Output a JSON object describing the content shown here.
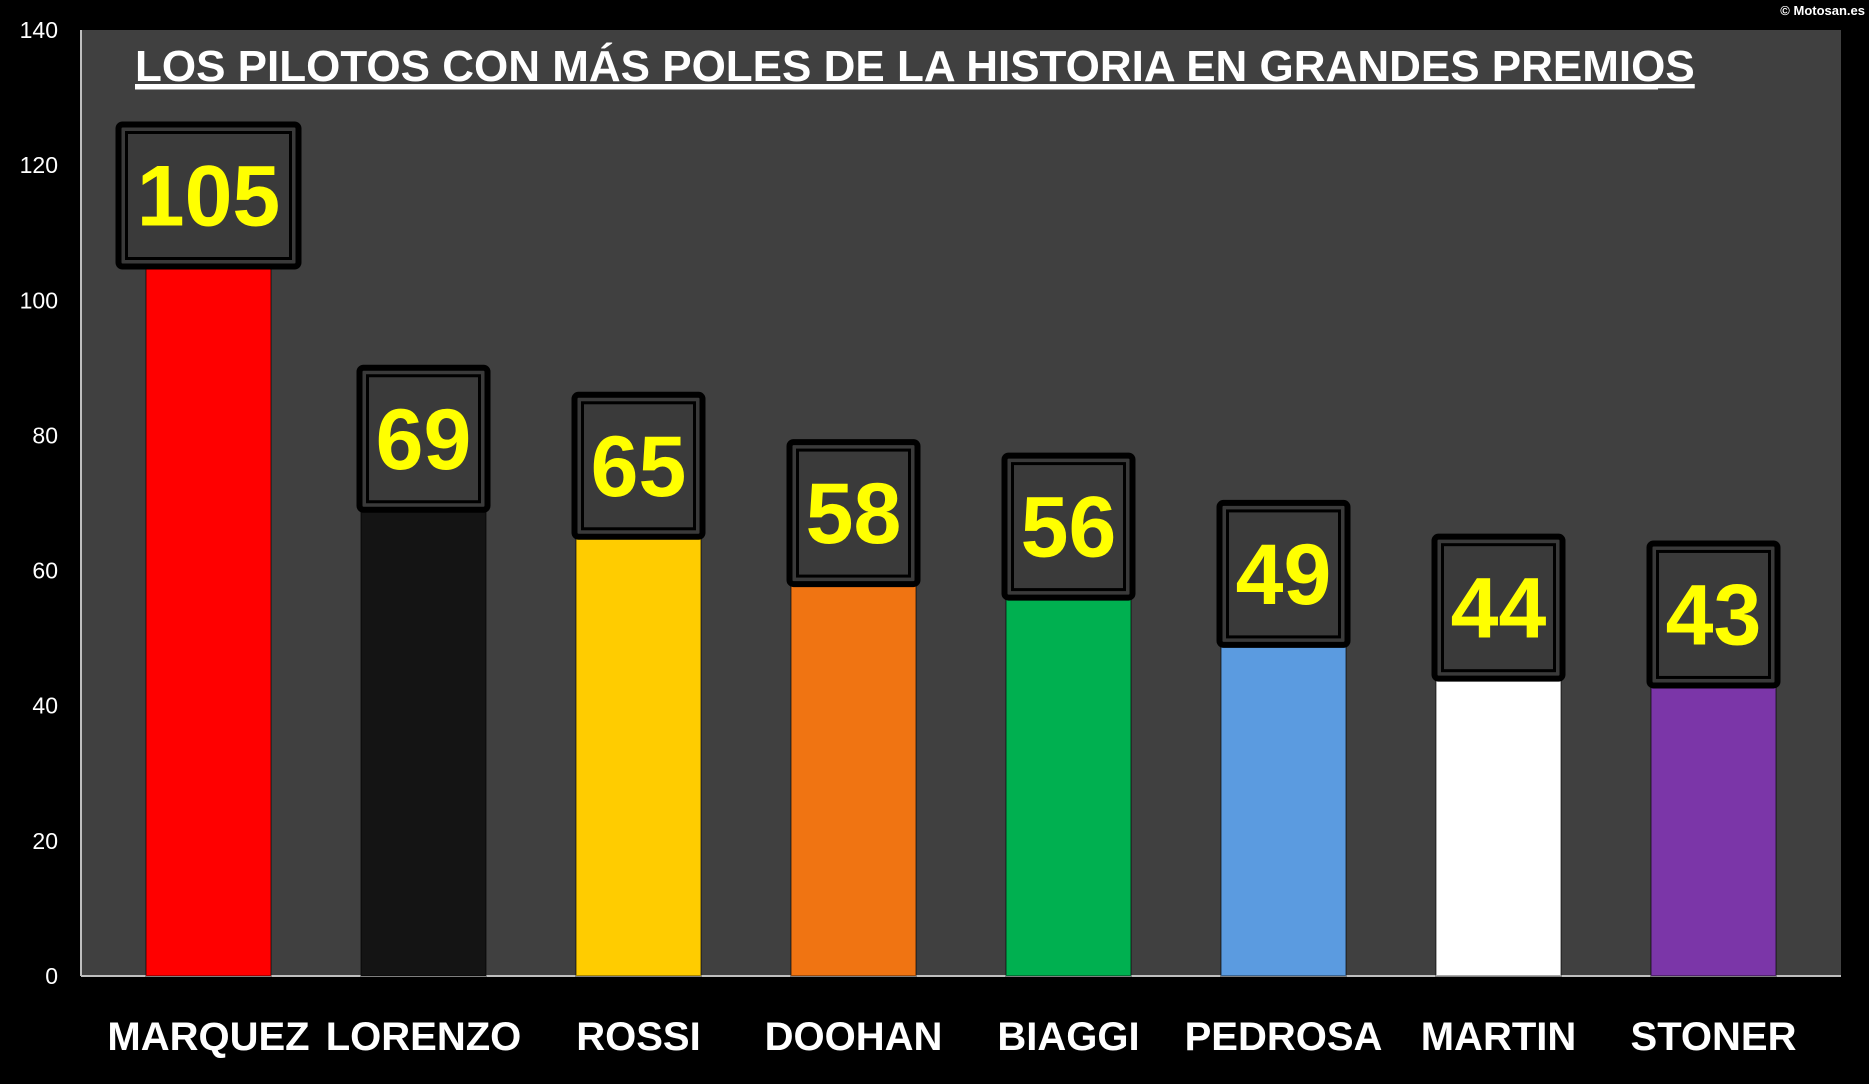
{
  "credit": "© Motosan.es",
  "colors": {
    "background": "#000000",
    "plot_area": "#404040",
    "value_label": "#FFFF00",
    "value_box": "#3a3a3a",
    "axis_text": "#FFFFFF"
  },
  "chart_data": {
    "type": "bar",
    "title": "LOS PILOTOS CON MÁS POLES DE LA HISTORIA EN GRANDES PREMIOS",
    "xlabel": "",
    "ylabel": "",
    "ylim": [
      0,
      140
    ],
    "yticks": [
      0,
      20,
      40,
      60,
      80,
      100,
      120,
      140
    ],
    "grid": false,
    "legend": "none",
    "categories": [
      "MARQUEZ",
      "LORENZO",
      "ROSSI",
      "DOOHAN",
      "BIAGGI",
      "PEDROSA",
      "MARTIN",
      "STONER"
    ],
    "values": [
      105,
      69,
      65,
      58,
      56,
      49,
      44,
      43
    ],
    "data_labels": [
      "105",
      "69",
      "65",
      "58",
      "56",
      "49",
      "44",
      "43"
    ],
    "bar_colors": [
      "#FF0000",
      "#141414",
      "#FFCC00",
      "#F07412",
      "#00B050",
      "#5B9BE0",
      "#FFFFFF",
      "#7B36A8"
    ]
  }
}
